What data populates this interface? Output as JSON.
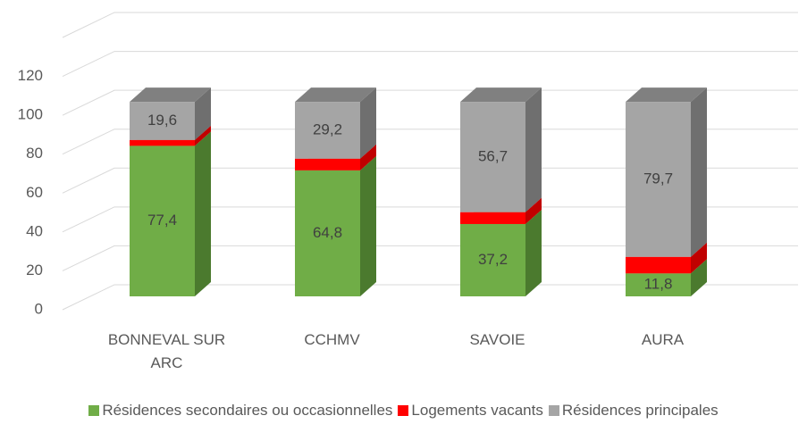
{
  "chart_data": {
    "type": "bar3d_stacked",
    "categories": [
      "BONNEVAL SUR ARC",
      "CCHMV",
      "SAVOIE",
      "AURA"
    ],
    "series": [
      {
        "name": "Résidences secondaires ou occasionnelles",
        "color": "#70ad47",
        "side_color": "#4b7a2e",
        "top_color": "#8cc06a",
        "values": [
          77.4,
          64.8,
          37.2,
          11.8
        ],
        "value_labels": [
          "77,4",
          "64,8",
          "37,2",
          "11,8"
        ]
      },
      {
        "name": "Logements vacants",
        "color": "#ff0000",
        "side_color": "#c00000",
        "top_color": "#ff4040",
        "values": [
          3.0,
          6.0,
          6.1,
          8.5
        ]
      },
      {
        "name": "Résidences principales",
        "color": "#a5a5a5",
        "side_color": "#6f6f6f",
        "top_color": "#808080",
        "values": [
          19.6,
          29.2,
          56.7,
          79.7
        ],
        "value_labels": [
          "19,6",
          "29,2",
          "56,7",
          "79,7"
        ]
      }
    ],
    "ylim": [
      0,
      140
    ],
    "yticks": [
      0,
      20,
      40,
      60,
      80,
      100,
      120
    ],
    "grid": true,
    "legend": "bottom"
  }
}
